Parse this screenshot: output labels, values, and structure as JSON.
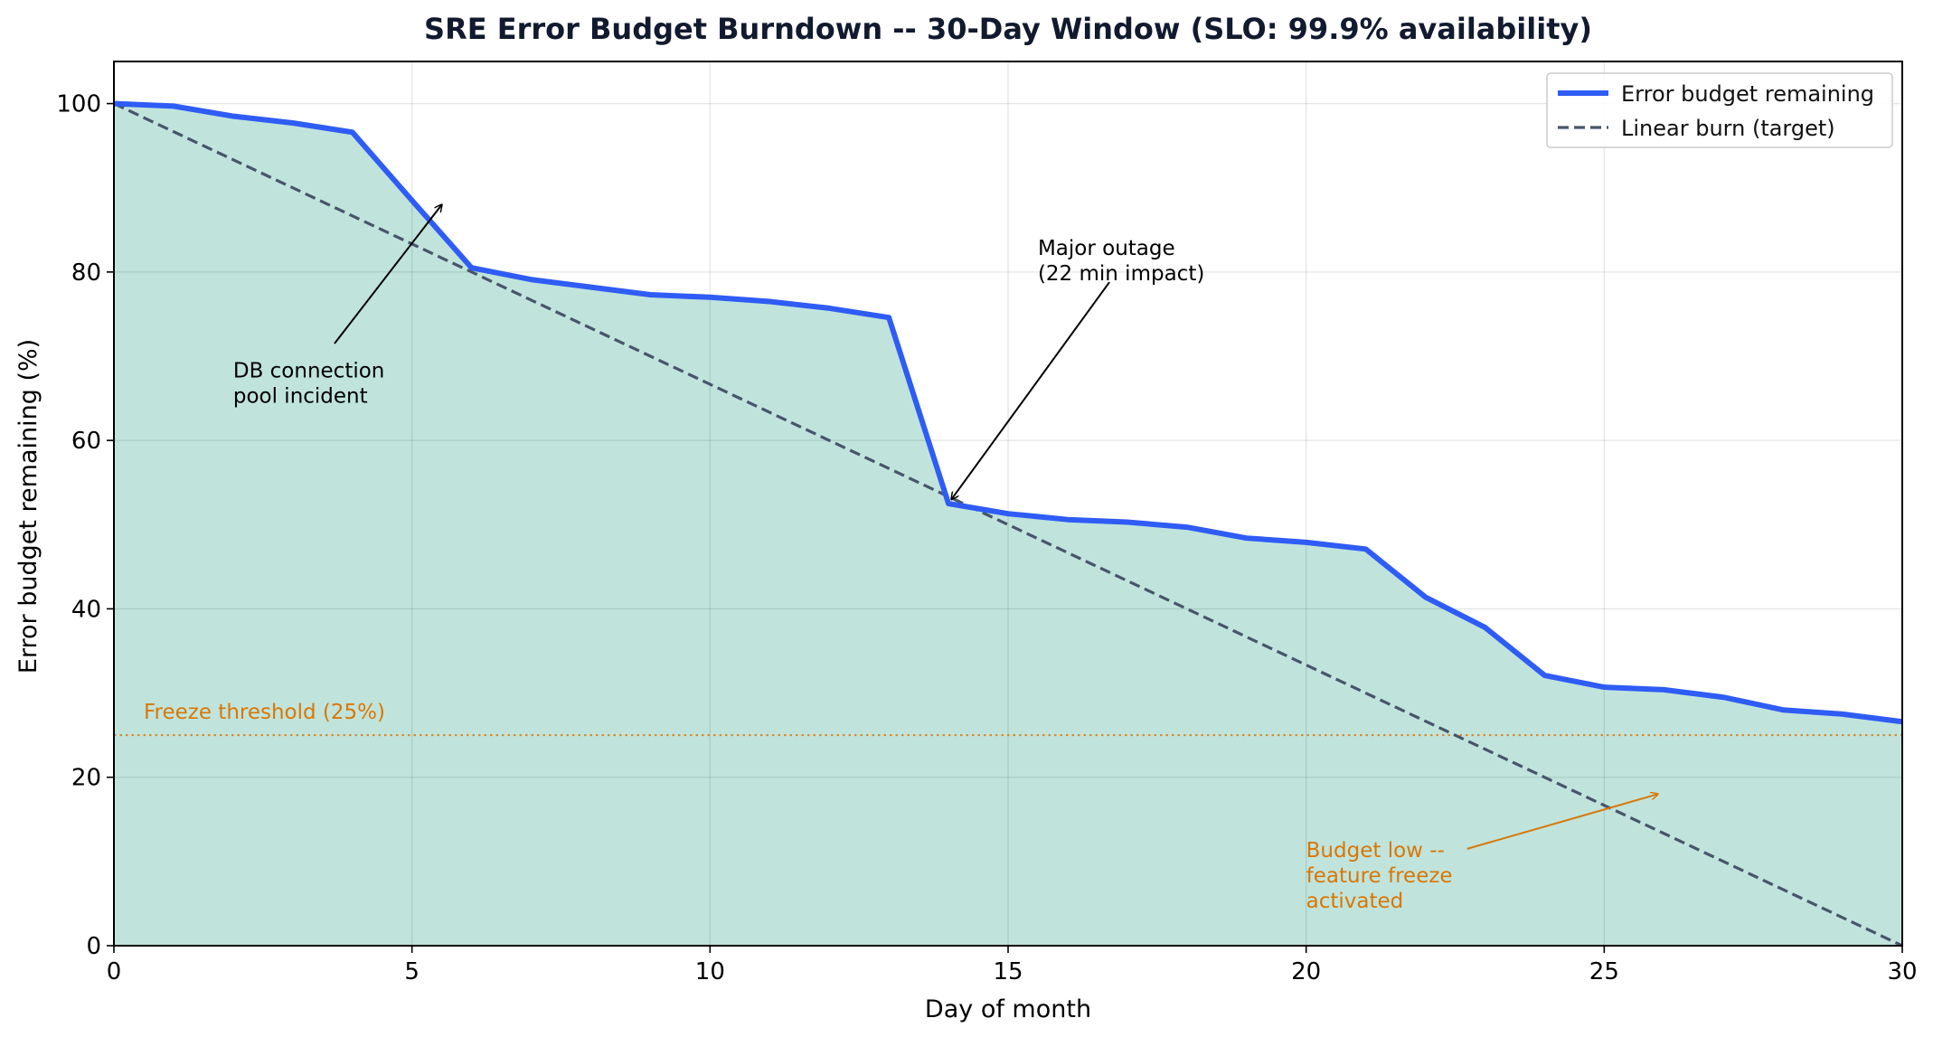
{
  "chart_data": {
    "type": "line",
    "title": "SRE Error Budget Burndown -- 30-Day Window (SLO: 99.9% availability)",
    "xlabel": "Day of month",
    "ylabel": "Error budget remaining (%)",
    "xlim": [
      0,
      30
    ],
    "ylim": [
      0,
      105
    ],
    "xticks": [
      "0",
      "5",
      "10",
      "15",
      "20",
      "25",
      "30"
    ],
    "yticks": [
      "0",
      "20",
      "40",
      "60",
      "80",
      "100"
    ],
    "grid": true,
    "legend_position": "top-right",
    "series": [
      {
        "name": "Error budget remaining",
        "color": "#2f5cf5",
        "style": "solid",
        "fill": "#c0e4dc",
        "x": [
          0,
          1,
          2,
          3,
          4,
          5,
          6,
          7,
          8,
          9,
          10,
          11,
          12,
          13,
          14,
          15,
          16,
          17,
          18,
          19,
          20,
          21,
          22,
          23,
          24,
          25,
          26,
          27,
          28,
          29,
          30
        ],
        "y": [
          100,
          99.7,
          98.5,
          97.7,
          96.6,
          88.5,
          80.5,
          79.1,
          78.2,
          77.3,
          77.0,
          76.5,
          75.7,
          74.6,
          52.5,
          51.3,
          50.6,
          50.3,
          49.7,
          48.4,
          47.9,
          47.1,
          41.4,
          37.8,
          32.1,
          30.7,
          30.4,
          29.5,
          28.0,
          27.5,
          26.6
        ]
      },
      {
        "name": "Linear burn (target)",
        "color": "#475569",
        "style": "dashed",
        "x": [
          0,
          30
        ],
        "y": [
          100,
          0
        ]
      }
    ],
    "threshold": {
      "label": "Freeze threshold (25%)",
      "value": 25,
      "color": "#d97706"
    },
    "annotations": [
      {
        "lines": [
          "DB connection",
          "pool incident"
        ],
        "color": "#000000",
        "text_at": [
          2,
          67.5
        ],
        "arrow_from": [
          3.7,
          71.5
        ],
        "arrow_to": [
          5.5,
          88
        ]
      },
      {
        "lines": [
          "Major outage",
          "(22 min impact)"
        ],
        "color": "#000000",
        "text_at": [
          15.5,
          82
        ],
        "arrow_from": [
          16.7,
          78.8
        ],
        "arrow_to": [
          14.05,
          53
        ]
      },
      {
        "lines": [
          "Budget low --",
          "feature freeze",
          "activated"
        ],
        "color": "#d97706",
        "text_at": [
          20,
          10.5
        ],
        "arrow_from": [
          22.7,
          11.5
        ],
        "arrow_to": [
          25.9,
          18
        ]
      }
    ]
  }
}
